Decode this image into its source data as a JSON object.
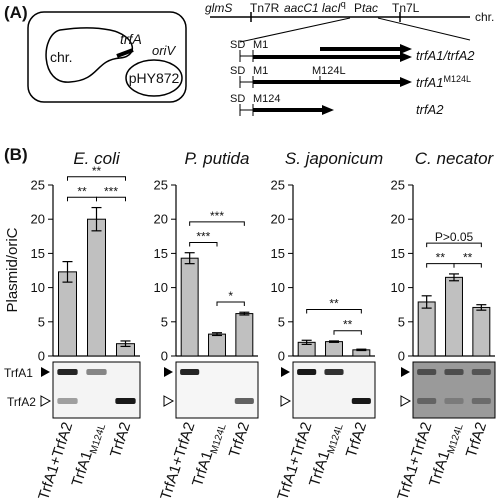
{
  "panel_a": {
    "label": "(A)",
    "plasmid_box": {
      "chromosome": "chr.",
      "gene": "trfA",
      "origin": "oriV",
      "plasmid": "pHY872"
    },
    "map": {
      "glms": "glmS",
      "tn7r": "Tn7R",
      "aacc1": "aacC1",
      "laci": "lacI",
      "laci_sup": "q",
      "ptac_p": "P",
      "ptac": "tac",
      "tn7l": "Tn7L",
      "end": "chr."
    },
    "constructs": [
      {
        "sd": "SD",
        "start": "M1",
        "name": "trfA1/trfA2"
      },
      {
        "sd": "SD",
        "start": "M1",
        "mutation": "M124L",
        "name": "trfA1",
        "name_sup": "M124L"
      },
      {
        "sd": "SD",
        "start": "M124",
        "name": "trfA2"
      }
    ]
  },
  "panel_b": {
    "label": "(B)"
  },
  "chart_data": [
    {
      "type": "bar",
      "title": "E. coli",
      "ylabel": "Plasmid/oriC",
      "categories": [
        "TrfA1+TrfA2",
        "TrfA1",
        "TrfA2"
      ],
      "category_subscripts": [
        null,
        "M124L",
        null
      ],
      "values": [
        12.3,
        20,
        1.8
      ],
      "errors": [
        1.5,
        1.7,
        0.4
      ],
      "color": "#c0c0c0",
      "ylim": [
        0,
        25
      ],
      "yticks": [
        0,
        5,
        10,
        15,
        20,
        25
      ],
      "comparisons": [
        {
          "label": "**",
          "pair": [
            0,
            1
          ]
        },
        {
          "label": "**",
          "pair": [
            0,
            2
          ]
        },
        {
          "label": "***",
          "pair": [
            1,
            2
          ]
        }
      ],
      "gel_labels": [
        "TrfA1",
        "TrfA2"
      ]
    },
    {
      "type": "bar",
      "title": "P. putida",
      "categories": [
        "TrfA1+TrfA2",
        "TrfA1",
        "TrfA2"
      ],
      "category_subscripts": [
        null,
        "M124L",
        null
      ],
      "values": [
        14.3,
        3.2,
        6.2
      ],
      "errors": [
        0.8,
        0.2,
        0.2
      ],
      "color": "#c0c0c0",
      "ylim": [
        0,
        25
      ],
      "yticks": [
        0,
        5,
        10,
        15,
        20,
        25
      ],
      "comparisons": [
        {
          "label": "***",
          "pair": [
            0,
            1
          ]
        },
        {
          "label": "***",
          "pair": [
            0,
            2
          ]
        },
        {
          "label": "*",
          "pair": [
            1,
            2
          ]
        }
      ]
    },
    {
      "type": "bar",
      "title": "S. japonicum",
      "categories": [
        "TrfA1+TrfA2",
        "TrfA1",
        "TrfA2"
      ],
      "category_subscripts": [
        null,
        "M124L",
        null
      ],
      "values": [
        2.0,
        2.1,
        0.9
      ],
      "errors": [
        0.3,
        0.1,
        0.1
      ],
      "color": "#c0c0c0",
      "ylim": [
        0,
        25
      ],
      "yticks": [
        0,
        5,
        10,
        15,
        20,
        25
      ],
      "comparisons": [
        {
          "label": "**",
          "pair": [
            0,
            2
          ]
        },
        {
          "label": "**",
          "pair": [
            1,
            2
          ]
        }
      ]
    },
    {
      "type": "bar",
      "title": "C. necator",
      "categories": [
        "TrfA1+TrfA2",
        "TrfA1",
        "TrfA2"
      ],
      "category_subscripts": [
        null,
        "M124L",
        null
      ],
      "values": [
        7.9,
        11.5,
        7.1
      ],
      "errors": [
        0.9,
        0.5,
        0.4
      ],
      "color": "#c0c0c0",
      "ylim": [
        0,
        25
      ],
      "yticks": [
        0,
        5,
        10,
        15,
        20,
        25
      ],
      "comparisons": [
        {
          "label": "**",
          "pair": [
            0,
            1
          ]
        },
        {
          "label": "P>0.05",
          "pair": [
            0,
            2
          ]
        },
        {
          "label": "**",
          "pair": [
            1,
            2
          ]
        }
      ]
    }
  ]
}
